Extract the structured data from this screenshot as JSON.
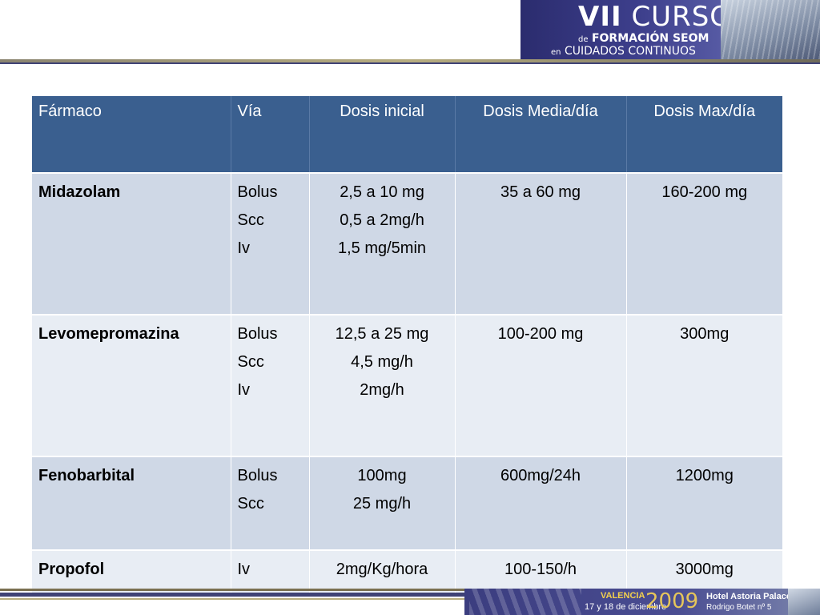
{
  "banner": {
    "title_roman": "VII",
    "title_word": "CURSO",
    "line2_prefix": "de",
    "line2_main": "FORMACIÓN SEOM",
    "line3_prefix": "en",
    "line3_main": "CUIDADOS CONTINUOS"
  },
  "table": {
    "headers": [
      "Fármaco",
      "Vía",
      "Dosis inicial",
      "Dosis Media/día",
      "Dosis Max/día"
    ],
    "rows": [
      {
        "drug": "Midazolam",
        "routes": [
          "Bolus",
          "Scc",
          "Iv"
        ],
        "initial": [
          "2,5 a 10 mg",
          "0,5 a 2mg/h",
          "1,5 mg/5min"
        ],
        "mean_day": "35 a 60 mg",
        "max_day": "160-200 mg"
      },
      {
        "drug": "Levomepromazina",
        "routes": [
          "Bolus",
          "Scc",
          "Iv"
        ],
        "initial": [
          "12,5 a 25 mg",
          "4,5 mg/h",
          "2mg/h"
        ],
        "mean_day": "100-200 mg",
        "max_day": "300mg"
      },
      {
        "drug": "Fenobarbital",
        "routes": [
          "Bolus",
          "Scc"
        ],
        "initial": [
          "100mg",
          "25 mg/h"
        ],
        "mean_day": "600mg/24h",
        "max_day": "1200mg"
      },
      {
        "drug": "Propofol",
        "routes": [
          "Iv"
        ],
        "initial": [
          "2mg/Kg/hora"
        ],
        "mean_day": "100-150/h",
        "max_day": "3000mg"
      }
    ]
  },
  "footer": {
    "city": "VALENCIA",
    "dates": "17 y 18 de diciembre",
    "year": "2009",
    "hotel": "Hotel Astoria Palace",
    "address": "Rodrigo Botet nº 5"
  }
}
